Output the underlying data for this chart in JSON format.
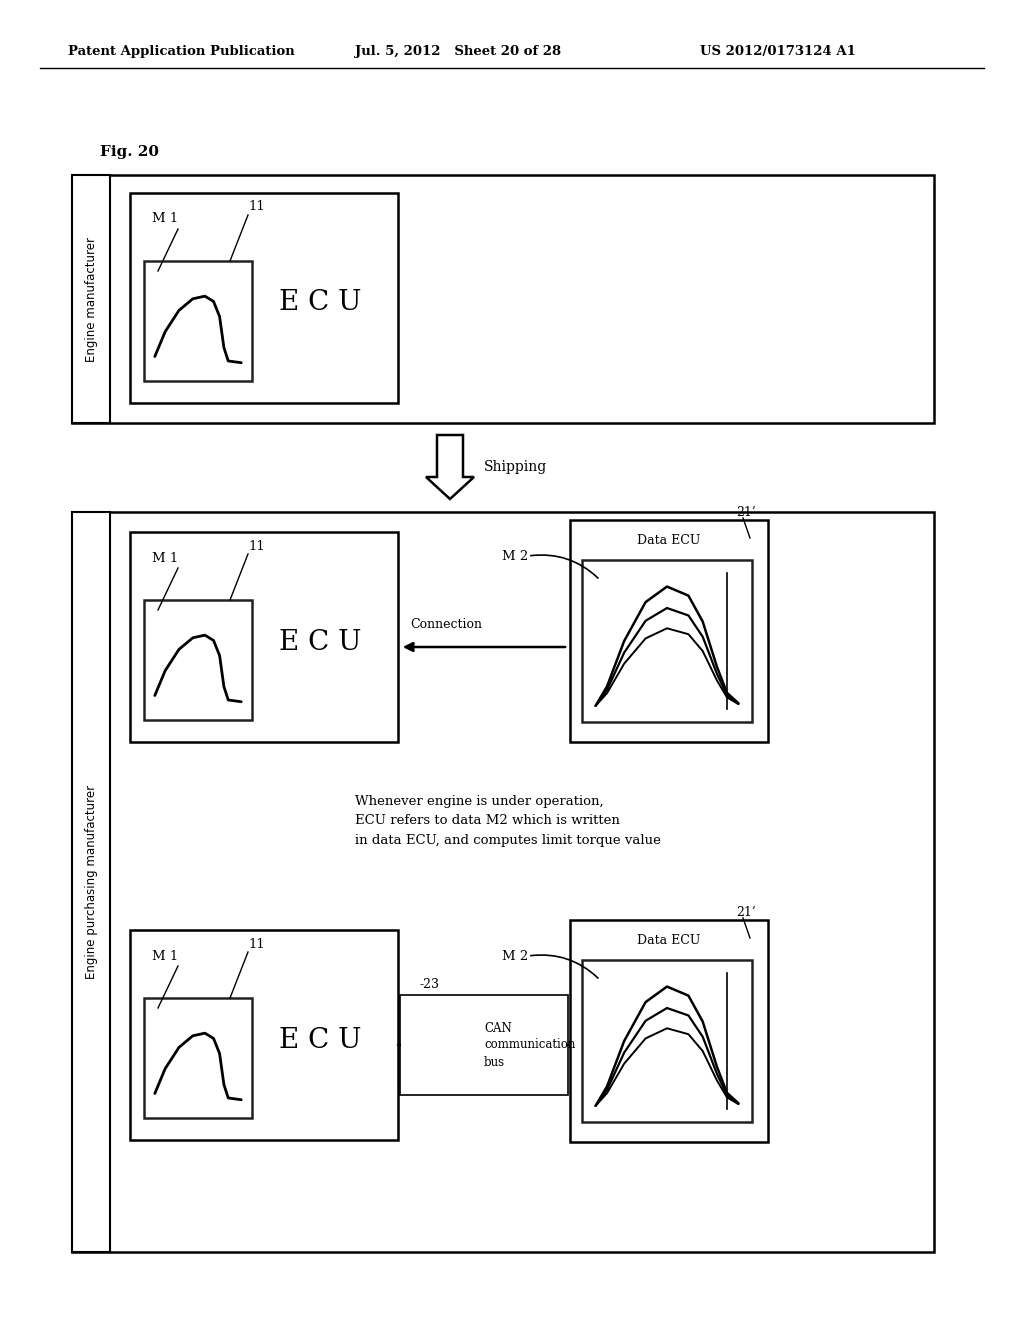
{
  "header_left": "Patent Application Publication",
  "header_mid": "Jul. 5, 2012   Sheet 20 of 28",
  "header_right": "US 2012/0173124 A1",
  "fig_label": "Fig. 20",
  "bg_color": "#ffffff",
  "top_box_label": "Engine manufacturer",
  "arrow_label": "Shipping",
  "bottom_box_label": "Engine purchasing manufacturer",
  "middle_text": "Whenever engine is under operation,\nECU refers to data M2 which is written\nin data ECU, and computes limit torque value",
  "label_m1": "M 1",
  "label_11": "11",
  "label_ecu": "E C U",
  "label_m2": "M 2",
  "label_21p": "21’",
  "label_data_ecu": "Data ECU",
  "label_connection": "Connection",
  "label_23": "-23",
  "label_can": "CAN\ncommunication\nbus"
}
